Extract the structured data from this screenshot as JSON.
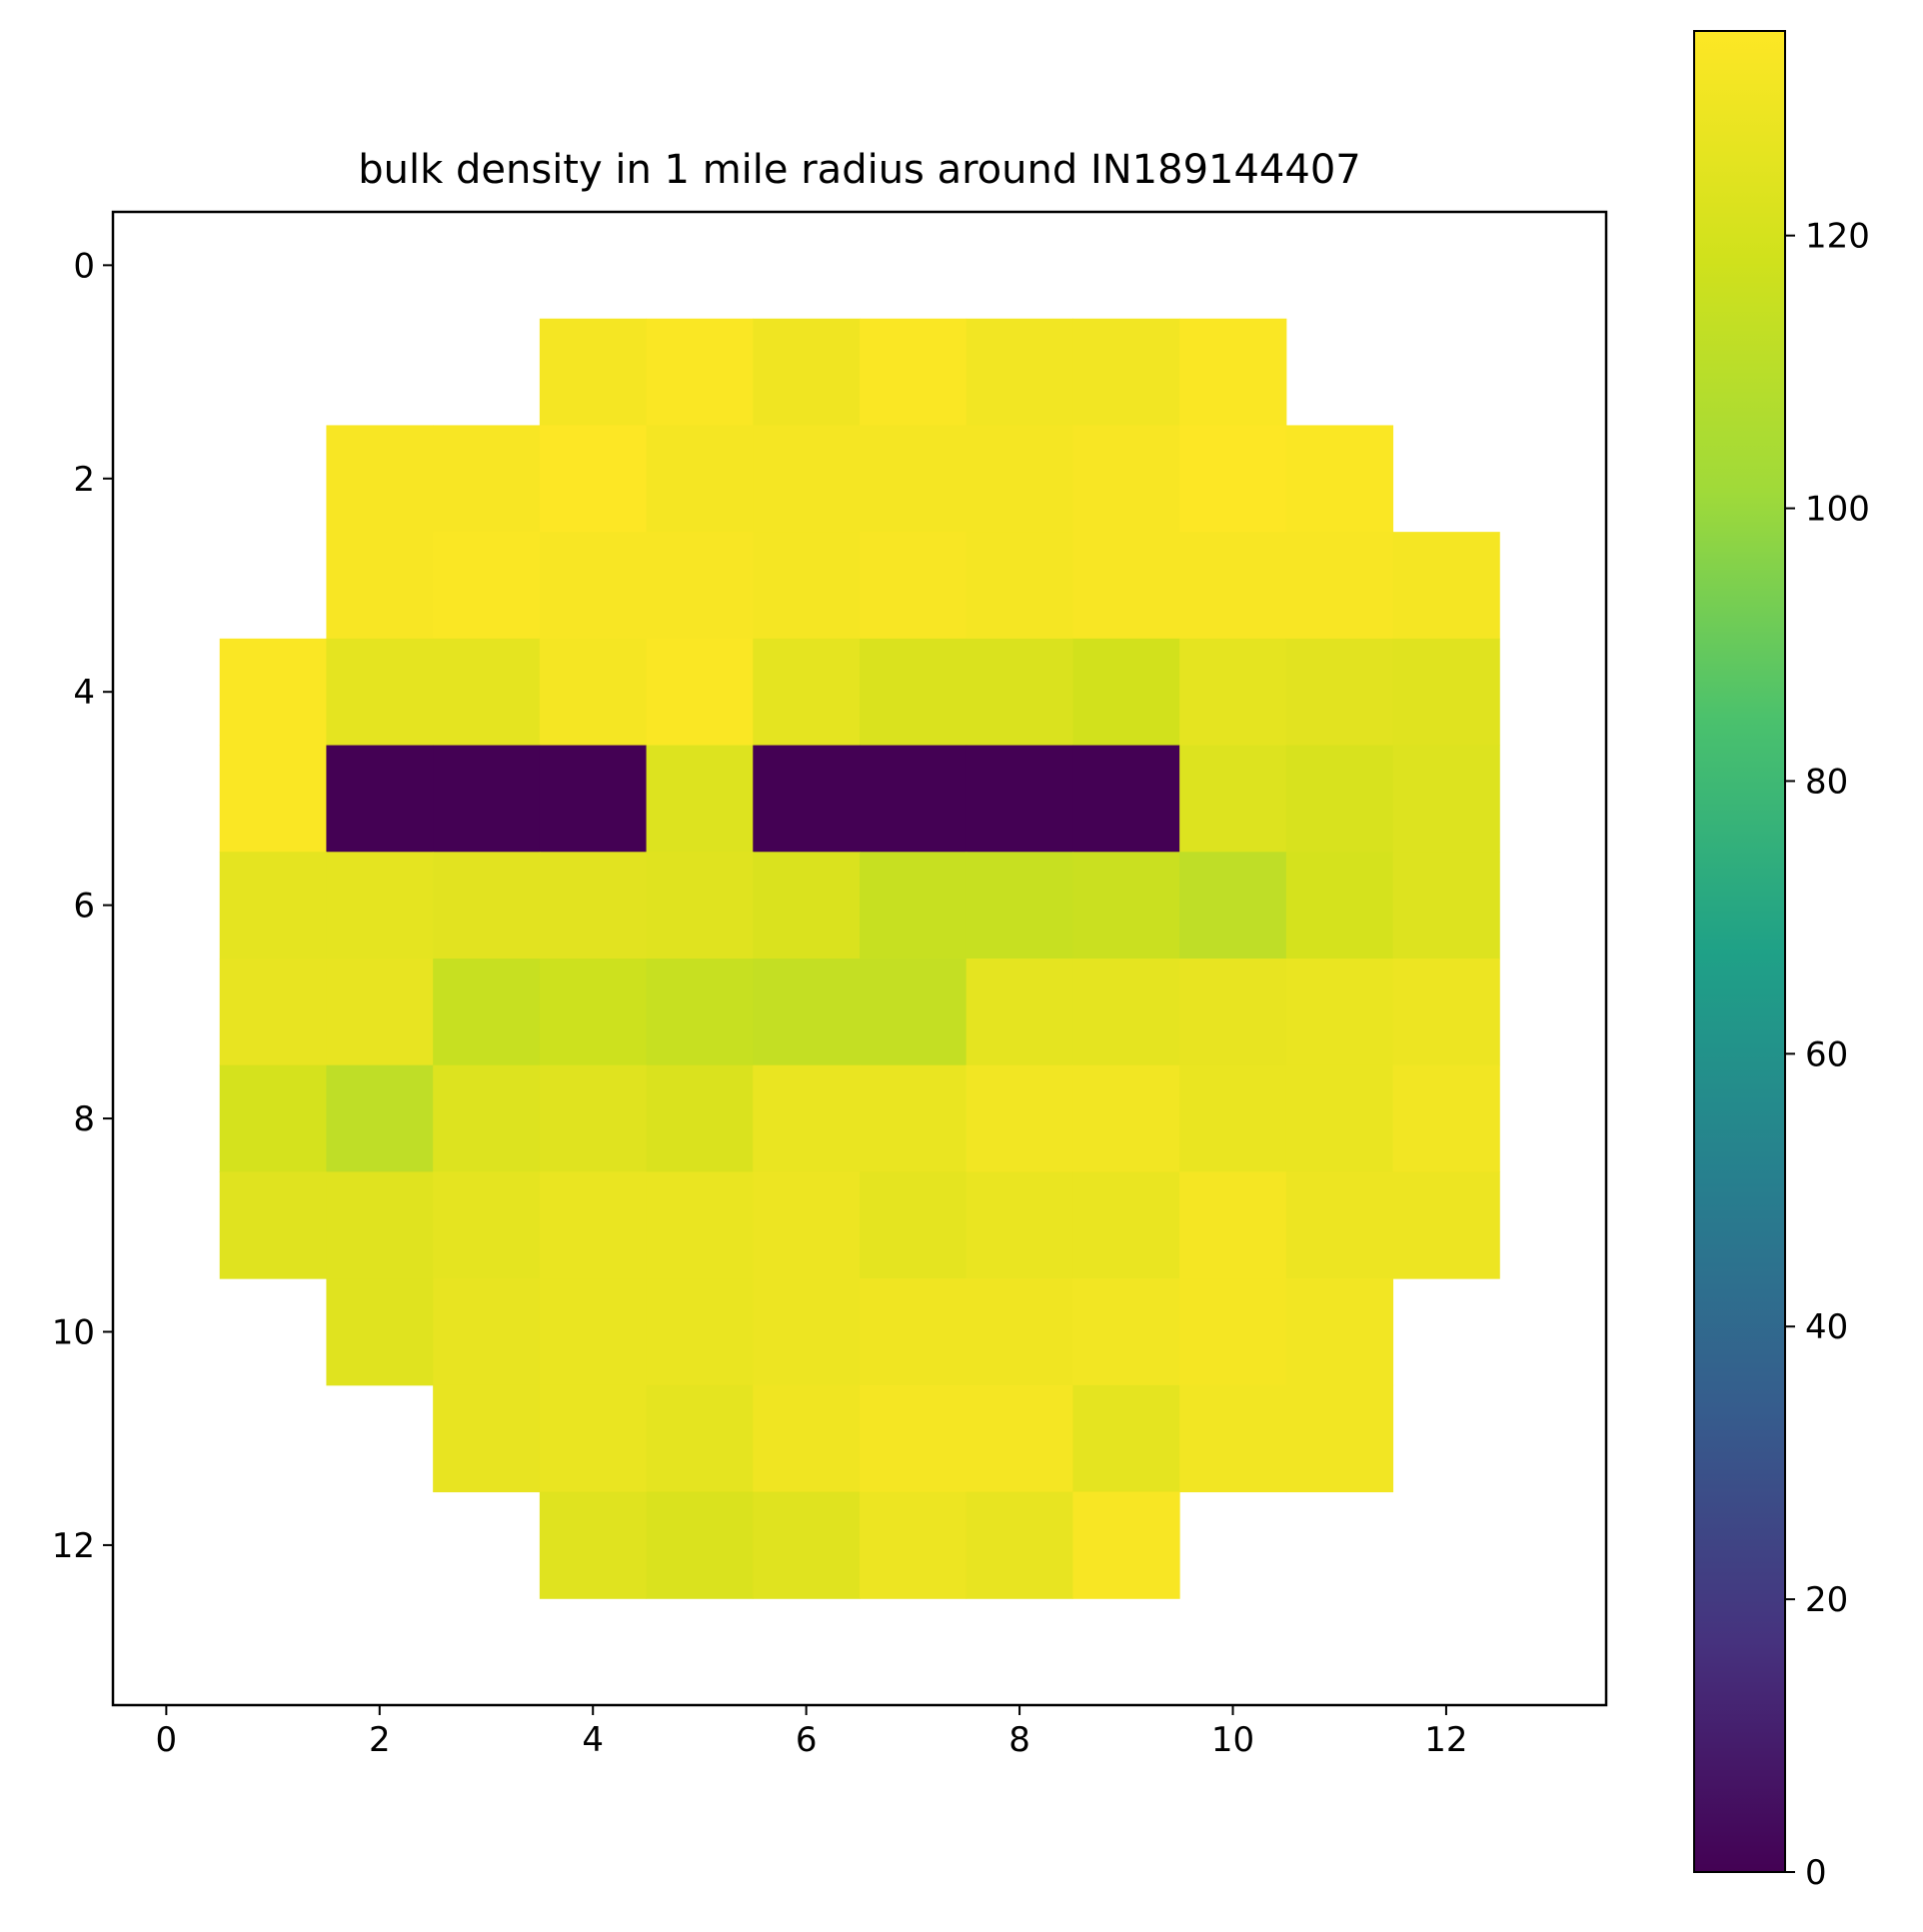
{
  "chart_data": {
    "type": "heatmap",
    "title": "bulk density in 1 mile radius around IN189144407",
    "xlabel": "",
    "ylabel": "",
    "colormap": "viridis",
    "rows": 14,
    "cols": 14,
    "xlim": [
      -0.5,
      13.5
    ],
    "ylim": [
      13.5,
      -0.5
    ],
    "x_ticks": [
      0,
      2,
      4,
      6,
      8,
      10,
      12
    ],
    "y_ticks": [
      0,
      2,
      4,
      6,
      8,
      10,
      12
    ],
    "colorbar": {
      "min": 0,
      "max": 135,
      "ticks": [
        0,
        20,
        40,
        60,
        80,
        100,
        120
      ]
    },
    "values": [
      [
        null,
        null,
        null,
        null,
        null,
        null,
        null,
        null,
        null,
        null,
        null,
        null,
        null,
        null
      ],
      [
        null,
        null,
        null,
        null,
        132,
        134,
        130,
        134,
        131,
        131,
        134,
        null,
        null,
        null
      ],
      [
        null,
        null,
        133,
        133,
        135,
        132,
        132,
        132,
        132,
        133,
        135,
        134,
        null,
        null
      ],
      [
        null,
        null,
        133,
        134,
        133,
        133,
        132,
        133,
        132,
        133,
        133,
        133,
        132,
        null
      ],
      [
        null,
        134,
        126,
        126,
        132,
        134,
        126,
        122,
        122,
        119,
        126,
        125,
        124,
        null
      ],
      [
        null,
        134,
        0,
        0,
        0,
        123,
        0,
        0,
        0,
        0,
        123,
        121,
        123,
        null
      ],
      [
        null,
        126,
        126,
        125,
        125,
        124,
        122,
        115,
        115,
        116,
        112,
        120,
        123,
        null
      ],
      [
        null,
        127,
        127,
        115,
        117,
        115,
        114,
        114,
        126,
        126,
        127,
        128,
        129,
        null
      ],
      [
        null,
        120,
        112,
        123,
        124,
        122,
        128,
        128,
        131,
        131,
        128,
        128,
        131,
        null
      ],
      [
        null,
        124,
        124,
        126,
        128,
        128,
        129,
        126,
        128,
        128,
        132,
        129,
        129,
        null
      ],
      [
        null,
        null,
        124,
        127,
        128,
        128,
        129,
        130,
        130,
        131,
        132,
        131,
        null,
        null
      ],
      [
        null,
        null,
        null,
        127,
        128,
        126,
        130,
        132,
        132,
        126,
        131,
        131,
        null,
        null
      ],
      [
        null,
        null,
        null,
        null,
        124,
        122,
        124,
        129,
        127,
        133,
        null,
        null,
        null,
        null
      ],
      [
        null,
        null,
        null,
        null,
        null,
        null,
        null,
        null,
        null,
        null,
        null,
        null,
        null,
        null
      ]
    ]
  }
}
